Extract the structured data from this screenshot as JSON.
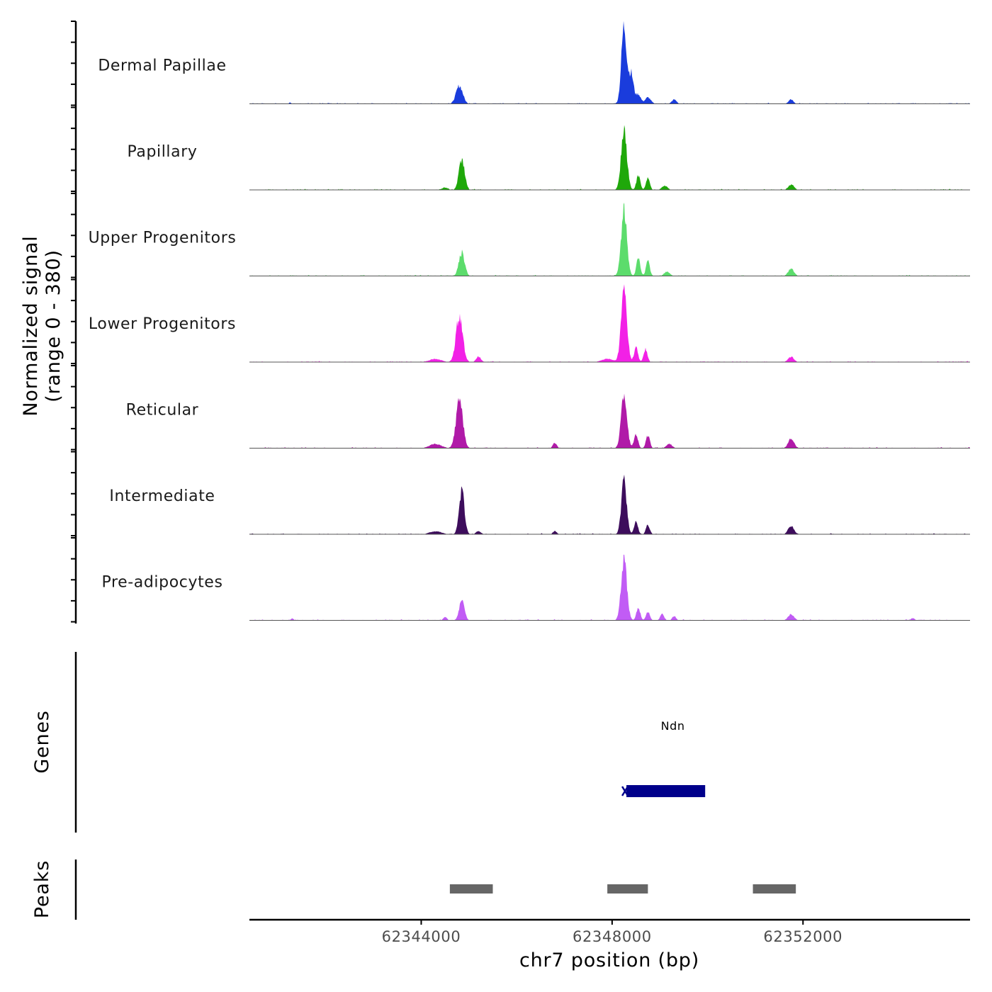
{
  "chart_data": {
    "type": "area",
    "title": "",
    "ylabel_line1": "Normalized signal",
    "ylabel_line2": "(range 0 - 380)",
    "ylim": [
      0,
      380
    ],
    "xlabel": "chr7 position (bp)",
    "xlim": [
      62340400,
      62355500
    ],
    "xticks": [
      62344000,
      62348000,
      62352000
    ],
    "xtick_labels": [
      "62344000",
      "62348000",
      "62352000"
    ],
    "peak_positions": [
      62344800,
      62348250,
      62348500,
      62348750,
      62351450,
      62351750
    ],
    "series": [
      {
        "name": "Dermal Papillae",
        "color": "#1a3cdc",
        "peaks": [
          {
            "pos": 62344800,
            "height": 85,
            "width": 70
          },
          {
            "pos": 62348250,
            "height": 370,
            "width": 55
          },
          {
            "pos": 62348400,
            "height": 140,
            "width": 50
          },
          {
            "pos": 62348550,
            "height": 45,
            "width": 50
          },
          {
            "pos": 62348750,
            "height": 30,
            "width": 60
          },
          {
            "pos": 62349300,
            "height": 20,
            "width": 50
          },
          {
            "pos": 62351750,
            "height": 20,
            "width": 50
          },
          {
            "pos": 62341250,
            "height": 6,
            "width": 25
          }
        ]
      },
      {
        "name": "Papillary",
        "color": "#1fa80a",
        "peaks": [
          {
            "pos": 62344850,
            "height": 140,
            "width": 60
          },
          {
            "pos": 62348250,
            "height": 280,
            "width": 60
          },
          {
            "pos": 62348550,
            "height": 70,
            "width": 40
          },
          {
            "pos": 62348750,
            "height": 55,
            "width": 40
          },
          {
            "pos": 62349100,
            "height": 20,
            "width": 60
          },
          {
            "pos": 62351750,
            "height": 25,
            "width": 60
          },
          {
            "pos": 62344500,
            "height": 12,
            "width": 60
          }
        ]
      },
      {
        "name": "Upper Progenitors",
        "color": "#5cdc6c",
        "peaks": [
          {
            "pos": 62344850,
            "height": 110,
            "width": 60
          },
          {
            "pos": 62348250,
            "height": 310,
            "width": 60
          },
          {
            "pos": 62348550,
            "height": 85,
            "width": 40
          },
          {
            "pos": 62348750,
            "height": 70,
            "width": 40
          },
          {
            "pos": 62349150,
            "height": 20,
            "width": 60
          },
          {
            "pos": 62351750,
            "height": 35,
            "width": 60
          }
        ]
      },
      {
        "name": "Lower Progenitors",
        "color": "#f221e6",
        "peaks": [
          {
            "pos": 62344800,
            "height": 220,
            "width": 70
          },
          {
            "pos": 62348250,
            "height": 340,
            "width": 60
          },
          {
            "pos": 62348500,
            "height": 70,
            "width": 40
          },
          {
            "pos": 62348700,
            "height": 60,
            "width": 40
          },
          {
            "pos": 62345200,
            "height": 25,
            "width": 50
          },
          {
            "pos": 62351750,
            "height": 25,
            "width": 60
          },
          {
            "pos": 62344300,
            "height": 15,
            "width": 120
          },
          {
            "pos": 62347900,
            "height": 15,
            "width": 120
          }
        ]
      },
      {
        "name": "Reticular",
        "color": "#b01aa8",
        "peaks": [
          {
            "pos": 62344800,
            "height": 230,
            "width": 70
          },
          {
            "pos": 62348250,
            "height": 260,
            "width": 60
          },
          {
            "pos": 62348500,
            "height": 70,
            "width": 40
          },
          {
            "pos": 62348750,
            "height": 60,
            "width": 40
          },
          {
            "pos": 62346800,
            "height": 25,
            "width": 40
          },
          {
            "pos": 62351750,
            "height": 45,
            "width": 60
          },
          {
            "pos": 62344300,
            "height": 20,
            "width": 120
          },
          {
            "pos": 62349200,
            "height": 20,
            "width": 60
          }
        ]
      },
      {
        "name": "Intermediate",
        "color": "#3d0d5c",
        "peaks": [
          {
            "pos": 62344850,
            "height": 210,
            "width": 55
          },
          {
            "pos": 62348250,
            "height": 250,
            "width": 55
          },
          {
            "pos": 62348500,
            "height": 60,
            "width": 40
          },
          {
            "pos": 62348750,
            "height": 45,
            "width": 40
          },
          {
            "pos": 62346800,
            "height": 15,
            "width": 40
          },
          {
            "pos": 62351750,
            "height": 40,
            "width": 60
          },
          {
            "pos": 62344300,
            "height": 15,
            "width": 120
          },
          {
            "pos": 62345200,
            "height": 15,
            "width": 50
          }
        ]
      },
      {
        "name": "Pre-adipocytes",
        "color": "#c15cf5",
        "peaks": [
          {
            "pos": 62344850,
            "height": 95,
            "width": 55
          },
          {
            "pos": 62348250,
            "height": 280,
            "width": 60
          },
          {
            "pos": 62348550,
            "height": 60,
            "width": 40
          },
          {
            "pos": 62348750,
            "height": 40,
            "width": 40
          },
          {
            "pos": 62349050,
            "height": 30,
            "width": 40
          },
          {
            "pos": 62349300,
            "height": 20,
            "width": 40
          },
          {
            "pos": 62351750,
            "height": 30,
            "width": 60
          },
          {
            "pos": 62344500,
            "height": 15,
            "width": 40
          },
          {
            "pos": 62341300,
            "height": 10,
            "width": 25
          },
          {
            "pos": 62354300,
            "height": 10,
            "width": 40
          }
        ]
      }
    ],
    "genes_label": "Genes",
    "genes": [
      {
        "name": "Ndn",
        "start": 62348300,
        "end": 62349950,
        "color": "#00008b"
      }
    ],
    "peaks_label": "Peaks",
    "peaks": [
      {
        "start": 62344600,
        "end": 62345500
      },
      {
        "start": 62347900,
        "end": 62348750
      },
      {
        "start": 62350950,
        "end": 62351850
      }
    ],
    "peaks_color": "#666666"
  }
}
